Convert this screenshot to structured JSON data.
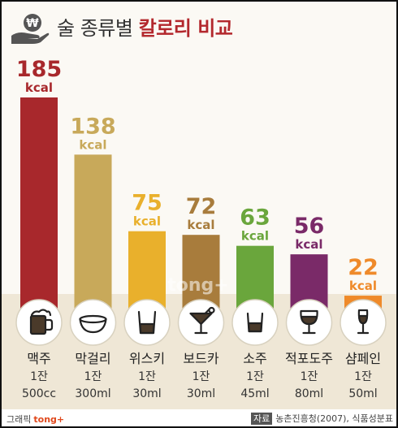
{
  "header": {
    "title_normal": "술 종류별",
    "title_accent": "칼로리 비교",
    "logo_glyph": "₩"
  },
  "watermark": "tong+",
  "chart_data": {
    "type": "bar",
    "unit": "kcal",
    "categories": [
      "맥주",
      "막걸리",
      "위스키",
      "보드카",
      "소주",
      "적포도주",
      "샴페인"
    ],
    "values": [
      185,
      138,
      75,
      72,
      63,
      56,
      22
    ],
    "serving_labels": [
      "1잔",
      "1잔",
      "1잔",
      "1잔",
      "1잔",
      "1잔",
      "1잔"
    ],
    "volumes": [
      "500cc",
      "300ml",
      "30ml",
      "30ml",
      "45ml",
      "80ml",
      "50ml"
    ],
    "icons": [
      "beer-mug-icon",
      "makgeolli-bowl-icon",
      "whisky-glass-icon",
      "cocktail-glass-icon",
      "soju-glass-icon",
      "wine-glass-icon",
      "champagne-glass-icon"
    ],
    "colors": [
      "#a8282c",
      "#c8a95a",
      "#e9b02c",
      "#a87c3c",
      "#6aa63c",
      "#7a2a68",
      "#ef8a2a"
    ],
    "ylim": [
      0,
      185
    ]
  },
  "footer": {
    "credit_label": "그래픽",
    "credit_brand": "tong+",
    "source_tag": "자료",
    "source_text": "농촌진흥청(2007), 식품성분표"
  }
}
